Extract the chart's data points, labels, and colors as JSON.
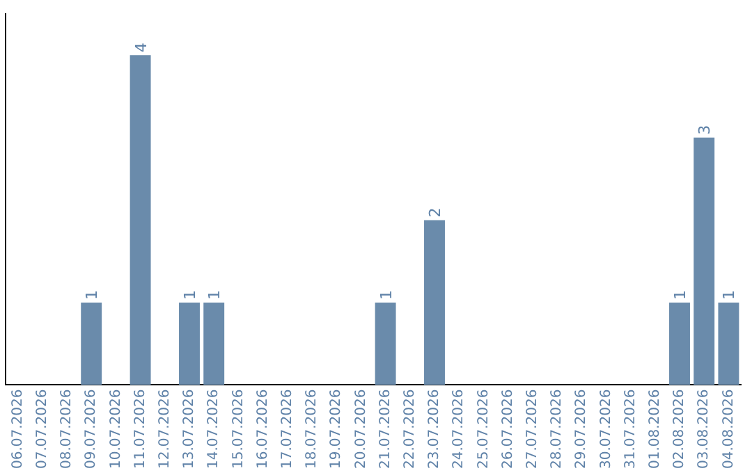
{
  "chart_data": {
    "type": "bar",
    "categories": [
      "06.07.2026",
      "07.07.2026",
      "08.07.2026",
      "09.07.2026",
      "10.07.2026",
      "11.07.2026",
      "12.07.2026",
      "13.07.2026",
      "14.07.2026",
      "15.07.2026",
      "16.07.2026",
      "17.07.2026",
      "18.07.2026",
      "19.07.2026",
      "20.07.2026",
      "21.07.2026",
      "22.07.2026",
      "23.07.2026",
      "24.07.2026",
      "25.07.2026",
      "26.07.2026",
      "27.07.2026",
      "28.07.2026",
      "29.07.2026",
      "30.07.2026",
      "31.07.2026",
      "01.08.2026",
      "02.08.2026",
      "03.08.2026",
      "04.08.2026"
    ],
    "values": [
      null,
      null,
      null,
      1,
      null,
      4,
      null,
      1,
      1,
      null,
      null,
      null,
      null,
      null,
      null,
      1,
      null,
      2,
      null,
      null,
      null,
      null,
      null,
      null,
      null,
      null,
      null,
      1,
      3,
      1
    ],
    "color": "#6a8bab",
    "data_labels": true,
    "tick_labels": "x",
    "grid": false,
    "legend": false
  }
}
